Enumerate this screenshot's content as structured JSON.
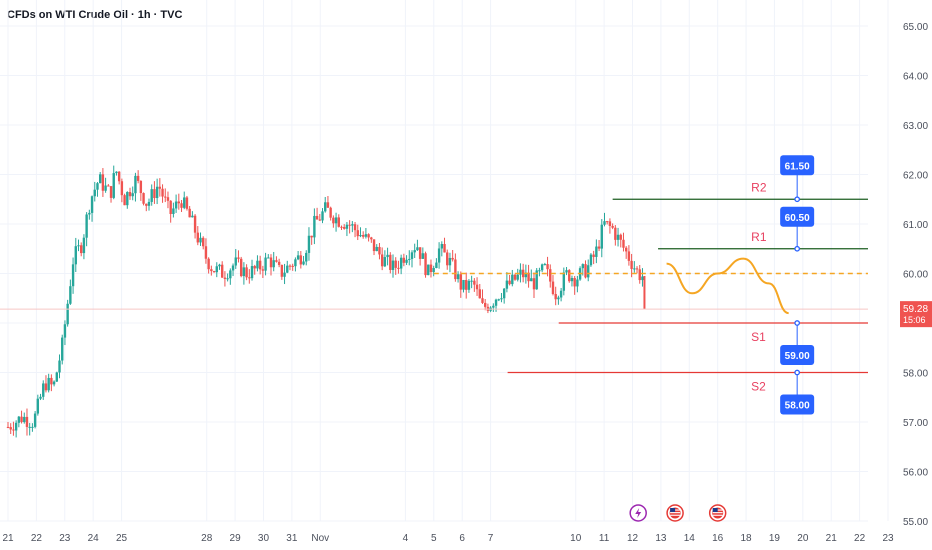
{
  "header": {
    "title": "CFDs on WTI Crude Oil · 1h · TVC"
  },
  "chart_data": {
    "type": "candlestick",
    "title": "CFDs on WTI Crude Oil · 1h · TVC",
    "symbol": "WTI Crude Oil",
    "interval": "1h",
    "source": "TVC",
    "ylim": [
      55,
      65
    ],
    "y_ticks": [
      "55.00",
      "56.00",
      "57.00",
      "58.00",
      "59.00",
      "60.00",
      "61.00",
      "62.00",
      "63.00",
      "64.00",
      "65.00"
    ],
    "x_ticks": [
      {
        "label": "21",
        "day": 21
      },
      {
        "label": "22",
        "day": 22
      },
      {
        "label": "23",
        "day": 23
      },
      {
        "label": "24",
        "day": 24
      },
      {
        "label": "25",
        "day": 25
      },
      {
        "label": "28",
        "day": 28
      },
      {
        "label": "29",
        "day": 29
      },
      {
        "label": "30",
        "day": 30
      },
      {
        "label": "31",
        "day": 31
      },
      {
        "label": "Nov",
        "day": 32
      },
      {
        "label": "4",
        "day": 35
      },
      {
        "label": "5",
        "day": 36
      },
      {
        "label": "6",
        "day": 37
      },
      {
        "label": "7",
        "day": 38
      },
      {
        "label": "10",
        "day": 41
      },
      {
        "label": "11",
        "day": 42
      },
      {
        "label": "12",
        "day": 43
      },
      {
        "label": "13",
        "day": 44
      },
      {
        "label": "14",
        "day": 45
      },
      {
        "label": "16",
        "day": 46
      },
      {
        "label": "18",
        "day": 47
      },
      {
        "label": "19",
        "day": 48
      },
      {
        "label": "20",
        "day": 49
      },
      {
        "label": "21",
        "day": 50
      },
      {
        "label": "22",
        "day": 51
      },
      {
        "label": "23",
        "day": 52
      }
    ],
    "price_path": [
      [
        21.0,
        56.9
      ],
      [
        21.5,
        57.1
      ],
      [
        21.9,
        57.0
      ],
      [
        22.3,
        57.8
      ],
      [
        22.6,
        57.7
      ],
      [
        22.9,
        58.5
      ],
      [
        23.1,
        59.4
      ],
      [
        23.3,
        60.3
      ],
      [
        23.6,
        60.6
      ],
      [
        23.9,
        61.5
      ],
      [
        24.2,
        61.9
      ],
      [
        24.6,
        61.6
      ],
      [
        24.8,
        62.1
      ],
      [
        25.1,
        61.5
      ],
      [
        25.5,
        61.9
      ],
      [
        25.9,
        61.4
      ],
      [
        26.3,
        61.8
      ],
      [
        26.7,
        61.2
      ],
      [
        27.1,
        61.5
      ],
      [
        27.5,
        61.0
      ],
      [
        27.9,
        60.4
      ],
      [
        28.2,
        60.1
      ],
      [
        28.6,
        60.0
      ],
      [
        29.0,
        60.2
      ],
      [
        29.4,
        60.0
      ],
      [
        29.8,
        60.1
      ],
      [
        30.2,
        60.3
      ],
      [
        30.6,
        60.0
      ],
      [
        31.0,
        60.2
      ],
      [
        31.4,
        60.4
      ],
      [
        31.8,
        61.0
      ],
      [
        32.2,
        61.3
      ],
      [
        32.6,
        61.1
      ],
      [
        33.0,
        61.0
      ],
      [
        33.4,
        60.8
      ],
      [
        33.8,
        60.6
      ],
      [
        34.2,
        60.3
      ],
      [
        34.6,
        60.1
      ],
      [
        35.0,
        60.4
      ],
      [
        35.4,
        60.6
      ],
      [
        35.8,
        60.0
      ],
      [
        36.2,
        60.5
      ],
      [
        36.6,
        60.2
      ],
      [
        37.0,
        59.7
      ],
      [
        37.4,
        59.8
      ],
      [
        37.7,
        59.3
      ],
      [
        38.0,
        59.4
      ],
      [
        38.3,
        59.6
      ],
      [
        38.7,
        59.8
      ],
      [
        39.1,
        60.0
      ],
      [
        39.5,
        59.8
      ],
      [
        39.9,
        60.1
      ],
      [
        40.3,
        59.6
      ],
      [
        40.7,
        60.0
      ],
      [
        41.0,
        59.9
      ],
      [
        41.4,
        60.1
      ],
      [
        41.7,
        60.4
      ],
      [
        42.0,
        61.0
      ],
      [
        42.3,
        60.9
      ],
      [
        42.6,
        60.6
      ],
      [
        42.9,
        60.3
      ],
      [
        43.2,
        60.0
      ],
      [
        43.35,
        59.95
      ]
    ],
    "last_price": "59.28",
    "countdown": "15:06",
    "levels": [
      {
        "name": "R2",
        "value": 61.5,
        "label": "61.50",
        "color": "#1b5e20"
      },
      {
        "name": "R1",
        "value": 60.5,
        "label": "60.50",
        "color": "#1b5e20"
      },
      {
        "name": "S1",
        "value": 59.0,
        "label": "59.00",
        "color": "#e53935"
      },
      {
        "name": "S2",
        "value": 58.0,
        "label": "58.00",
        "color": "#e53935"
      }
    ],
    "dashed_level": 60.0,
    "forecast_path": [
      [
        44.2,
        60.2
      ],
      [
        45.1,
        59.6
      ],
      [
        46.0,
        60.0
      ],
      [
        46.9,
        60.3
      ],
      [
        47.8,
        59.8
      ],
      [
        48.5,
        59.2
      ]
    ],
    "event_markers": [
      {
        "type": "lightning-icon",
        "day": 43.2
      },
      {
        "type": "us-flag-icon",
        "day": 44.5
      },
      {
        "type": "us-flag-icon",
        "day": 46.0
      }
    ],
    "grid": true
  },
  "colors": {
    "up": "#26a69a",
    "down": "#ef5350",
    "accent": "#2962ff",
    "forecast": "#f5a623"
  }
}
